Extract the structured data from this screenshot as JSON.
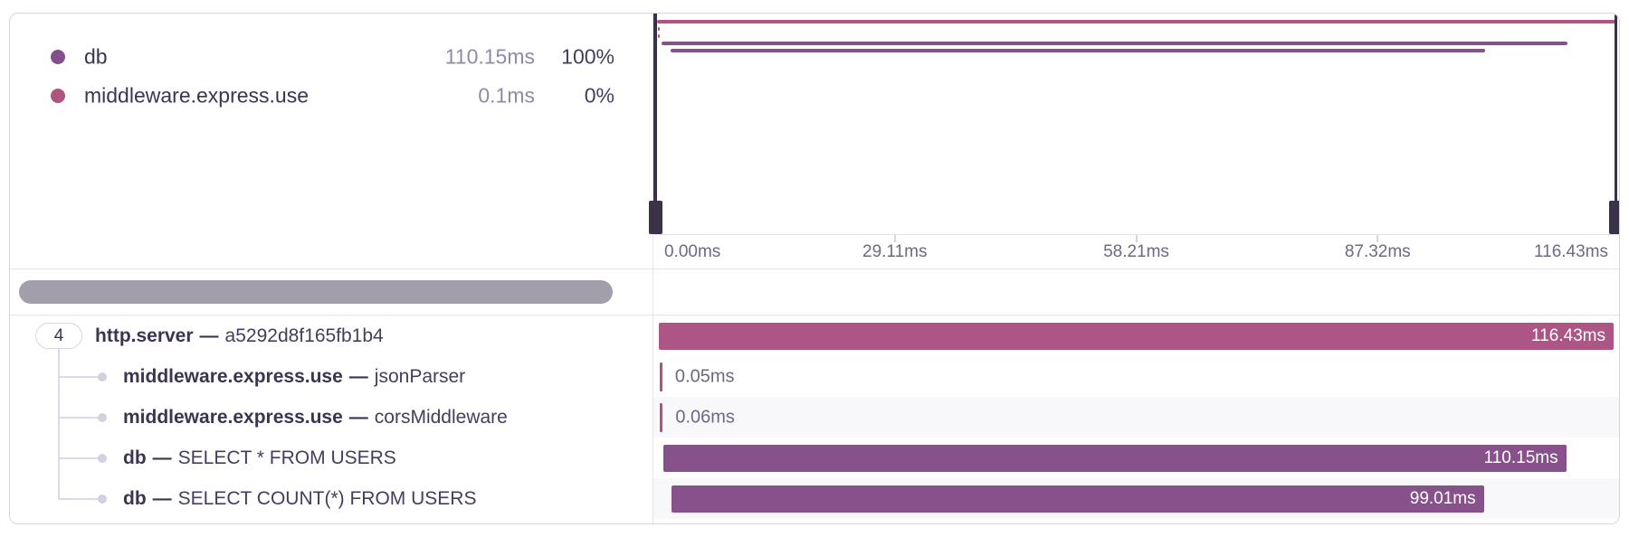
{
  "total_ms": 116.43,
  "legend": {
    "items": [
      {
        "label": "db",
        "duration": "110.15ms",
        "percent": "100%",
        "color": "#84508b"
      },
      {
        "label": "middleware.express.use",
        "duration": "0.1ms",
        "percent": "0%",
        "color": "#af5381"
      }
    ]
  },
  "axis": {
    "ticks": [
      {
        "label": "0.00ms",
        "pos": 0
      },
      {
        "label": "29.11ms",
        "pos": 25
      },
      {
        "label": "58.21ms",
        "pos": 50
      },
      {
        "label": "87.32ms",
        "pos": 75
      },
      {
        "label": "116.43ms",
        "pos": 100
      }
    ]
  },
  "spans": [
    {
      "badge": "4",
      "op": "http.server",
      "dash": "—",
      "description": "a5292d8f165fb1b4",
      "start_ms": 0,
      "duration_ms": 116.43,
      "duration_label": "116.43ms",
      "color": "#ad5585",
      "alt_bg": false
    },
    {
      "op": "middleware.express.use",
      "dash": "—",
      "description": "jsonParser",
      "start_ms": 0.1,
      "duration_ms": 0.05,
      "duration_label": "0.05ms",
      "color": "#b0537f",
      "alt_bg": false
    },
    {
      "op": "middleware.express.use",
      "dash": "—",
      "description": "corsMiddleware",
      "start_ms": 0.15,
      "duration_ms": 0.06,
      "duration_label": "0.06ms",
      "color": "#b0537f",
      "alt_bg": true
    },
    {
      "op": "db",
      "dash": "—",
      "description": "SELECT * FROM USERS",
      "start_ms": 0.5,
      "duration_ms": 110.15,
      "duration_label": "110.15ms",
      "color": "#87518c",
      "alt_bg": false
    },
    {
      "op": "db",
      "dash": "—",
      "description": "SELECT COUNT(*) FROM USERS",
      "start_ms": 1.6,
      "duration_ms": 99.01,
      "duration_label": "99.01ms",
      "color": "#87518c",
      "alt_bg": true
    }
  ]
}
